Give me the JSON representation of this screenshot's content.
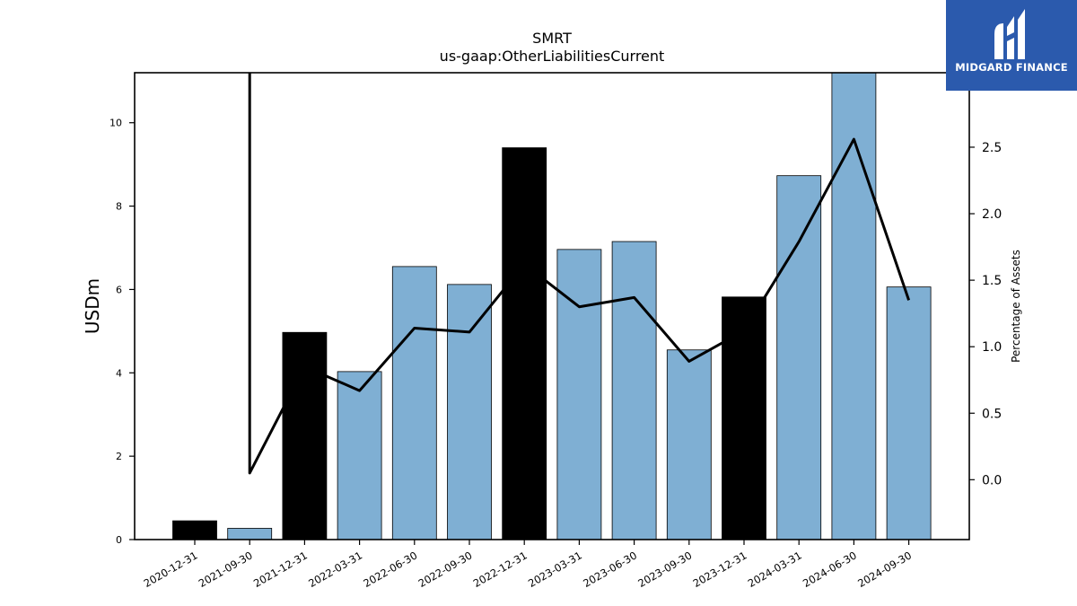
{
  "chart_data": {
    "type": "bar",
    "title": "SMRT",
    "subtitle": "us-gaap:OtherLiabilitiesCurrent",
    "ylabel": "USDm",
    "y2label": "Percentage of Assets",
    "categories": [
      "2020-12-31",
      "2021-09-30",
      "2021-12-31",
      "2022-03-31",
      "2022-06-30",
      "2022-09-30",
      "2022-12-31",
      "2023-03-31",
      "2023-06-30",
      "2023-09-30",
      "2023-12-31",
      "2024-03-31",
      "2024-06-30",
      "2024-09-30"
    ],
    "values": [
      0.45,
      0.27,
      4.97,
      4.03,
      6.55,
      6.12,
      9.4,
      6.96,
      7.15,
      4.55,
      5.82,
      8.73,
      11.2,
      6.06
    ],
    "bar_colors": [
      "#000000",
      "#7fafd3",
      "#000000",
      "#7fafd3",
      "#7fafd3",
      "#7fafd3",
      "#000000",
      "#7fafd3",
      "#7fafd3",
      "#7fafd3",
      "#000000",
      "#7fafd3",
      "#7fafd3",
      "#7fafd3"
    ],
    "line_values": [
      null,
      0.05,
      0.85,
      0.67,
      1.14,
      1.11,
      1.62,
      1.3,
      1.37,
      0.89,
      1.12,
      1.79,
      2.56,
      1.35
    ],
    "line_spike_top": true,
    "ylim": [
      0,
      11.2
    ],
    "yticks": [
      0,
      2,
      4,
      6,
      8,
      10
    ],
    "y2lim": [
      -0.45,
      3.06
    ],
    "y2ticks": [
      "0.0",
      "0.5",
      "1.0",
      "1.5",
      "2.0",
      "2.5"
    ],
    "grid": false
  },
  "logo": {
    "text": "MIDGARD FINANCE",
    "bg_color": "#2b5aad"
  }
}
